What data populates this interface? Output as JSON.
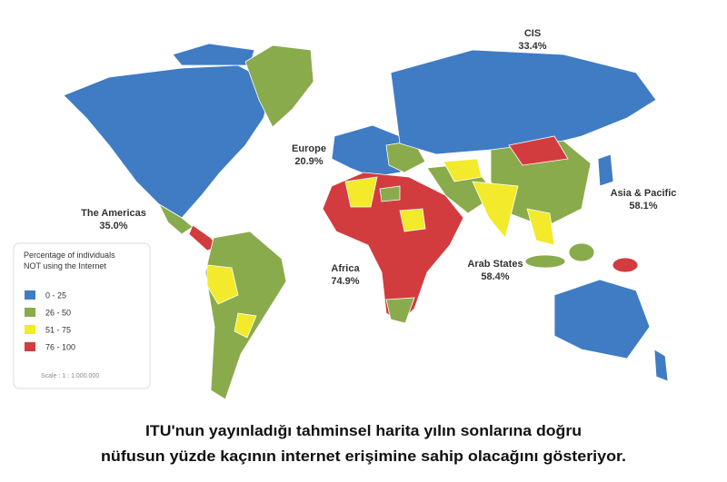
{
  "map": {
    "regions": [
      {
        "name": "CIS",
        "value": "33.4%"
      },
      {
        "name": "Europe",
        "value": "20.9%"
      },
      {
        "name": "Asia & Pacific",
        "value": "58.1%"
      },
      {
        "name": "The Americas",
        "value": "35.0%"
      },
      {
        "name": "Africa",
        "value": "74.9%"
      },
      {
        "name": "Arab States",
        "value": "58.4%"
      }
    ],
    "legend": {
      "title": [
        "Percentage of individuals",
        "NOT using the Internet"
      ],
      "items": [
        {
          "label": "0 - 25",
          "color": "#3f7cc4"
        },
        {
          "label": "26 - 50",
          "color": "#8aab4c"
        },
        {
          "label": "51 - 75",
          "color": "#f2ea2a"
        },
        {
          "label": "76 - 100",
          "color": "#d23c3e"
        }
      ]
    },
    "scale": "Scale : 1 : 1.000.000"
  },
  "caption": [
    "ITU'nun yayınladığı tahminsel harita yılın sonlarına doğru",
    "nüfusun yüzde kaçının internet erişimine sahip olacağını gösteriyor."
  ]
}
